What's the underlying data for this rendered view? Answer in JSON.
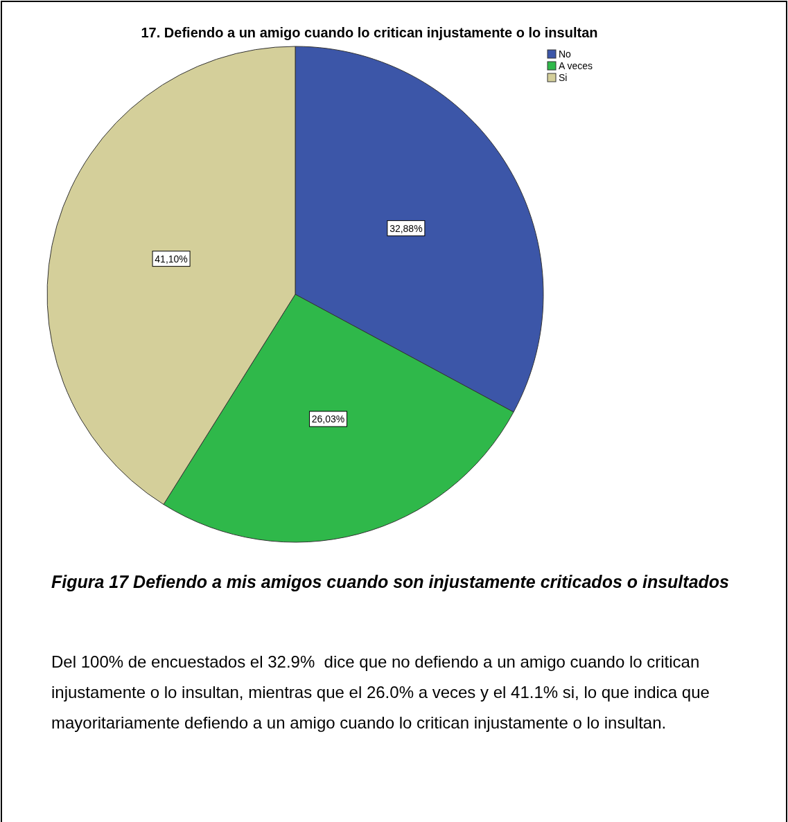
{
  "chart_data": {
    "type": "pie",
    "title": "17.  Defiendo a un amigo cuando lo critican injustamente o lo insultan",
    "categories": [
      "No",
      "A veces",
      "Si"
    ],
    "values": [
      32.88,
      26.03,
      41.1
    ],
    "colors": [
      "#3c56a8",
      "#2fb84a",
      "#d4cf9a"
    ],
    "value_labels": [
      "32,88%",
      "26,03%",
      "41,10%"
    ],
    "legend": "top right",
    "annotations": [
      "Figura 17 Defiendo a mis amigos cuando son injustamente criticados o insultados",
      "Del 100% de encuestados el 32.9%  dice que no defiendo a un amigo cuando lo critican injustamente o lo insultan, mientras que el 26.0% a veces y el 41.1% si, lo que indica que mayoritariamente defiendo a un amigo cuando lo critican injustamente o lo insultan."
    ]
  }
}
